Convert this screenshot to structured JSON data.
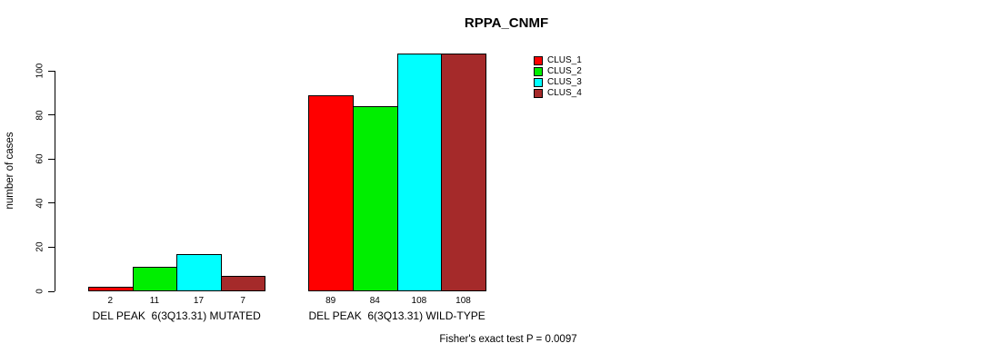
{
  "page": {
    "background_color": "#ffffff",
    "text_color": "#000000"
  },
  "chart_data": {
    "type": "bar",
    "title": "RPPA_CNMF",
    "ylabel": "number of cases",
    "xlabel": "",
    "ylim": [
      0,
      108
    ],
    "yticks": [
      0,
      20,
      40,
      60,
      80,
      100
    ],
    "grid": false,
    "legend_position": "top-right",
    "bar_border_color": "#000000",
    "categories": [
      "DEL PEAK  6(3Q13.31) MUTATED",
      "DEL PEAK  6(3Q13.31) WILD-TYPE"
    ],
    "series": [
      {
        "name": "CLUS_1",
        "color": "#ff0000",
        "values": [
          2,
          89
        ]
      },
      {
        "name": "CLUS_2",
        "color": "#00ee00",
        "values": [
          11,
          84
        ]
      },
      {
        "name": "CLUS_3",
        "color": "#00ffff",
        "values": [
          17,
          108
        ]
      },
      {
        "name": "CLUS_4",
        "color": "#a52a2a",
        "values": [
          7,
          108
        ]
      }
    ],
    "value_labels_shown": true,
    "annotation": "Fisher's exact test P = 0.0097"
  }
}
